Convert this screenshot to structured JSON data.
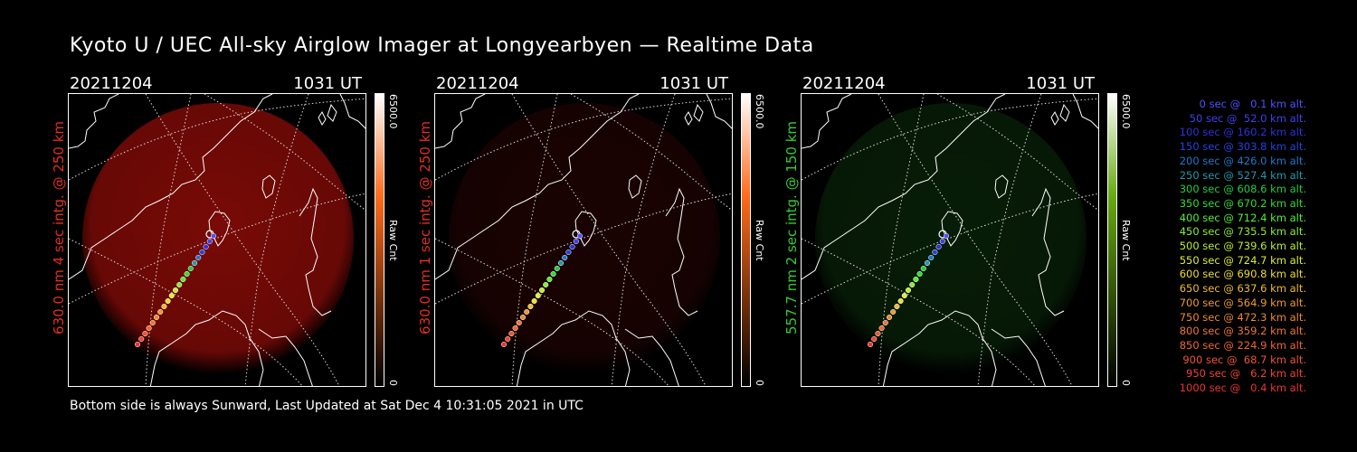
{
  "title": "Kyoto U / UEC All-sky Airglow Imager at Longyearbyen — Realtime Data",
  "footer": "Bottom side is always Sunward, Last Updated at Sat Dec  4 10:31:05 2021 in UTC",
  "panels": [
    {
      "date": "20211204",
      "time": "1031 UT",
      "side_label": "630.0 nm 4 sec intg. @ 250 km",
      "label_color": "#e0301e",
      "cbar_max": "6500.0",
      "cbar_min": "0",
      "cbar_unit": "Raw Cnt",
      "cbar_color": "#ff6a1a",
      "airglow_color": "#8e0c08",
      "airglow_level": 0.85
    },
    {
      "date": "20211204",
      "time": "1031 UT",
      "side_label": "630.0 nm 1 sec intg. @ 250 km",
      "label_color": "#e0301e",
      "cbar_max": "6500.0",
      "cbar_min": "0",
      "cbar_unit": "Raw Cnt",
      "cbar_color": "#ff6a1a",
      "airglow_color": "#3a0606",
      "airglow_level": 0.45
    },
    {
      "date": "20211204",
      "time": "1031 UT",
      "side_label": "557.7 nm 2 sec intg. @ 150 km",
      "label_color": "#33cc33",
      "cbar_max": "6500.0",
      "cbar_min": "0",
      "cbar_unit": "Raw Cnt",
      "cbar_color": "#66aa11",
      "airglow_color": "#0f3a0f",
      "airglow_level": 0.5
    }
  ],
  "legend": [
    {
      "text": "0 sec @   0.1 km alt.",
      "color": "#5050ff"
    },
    {
      "text": "50 sec @  52.0 km alt.",
      "color": "#4040ee"
    },
    {
      "text": "100 sec @ 160.2 km alt.",
      "color": "#3030dd"
    },
    {
      "text": "150 sec @ 303.8 km alt.",
      "color": "#2244dd"
    },
    {
      "text": "200 sec @ 426.0 km alt.",
      "color": "#2277cc"
    },
    {
      "text": "250 sec @ 527.4 km alt.",
      "color": "#2299aa"
    },
    {
      "text": "300 sec @ 608.6 km alt.",
      "color": "#22cc44"
    },
    {
      "text": "350 sec @ 670.2 km alt.",
      "color": "#33dd33"
    },
    {
      "text": "400 sec @ 712.4 km alt.",
      "color": "#55ee33"
    },
    {
      "text": "450 sec @ 735.5 km alt.",
      "color": "#88ee33"
    },
    {
      "text": "500 sec @ 739.6 km alt.",
      "color": "#bbee33"
    },
    {
      "text": "550 sec @ 724.7 km alt.",
      "color": "#ddee33"
    },
    {
      "text": "600 sec @ 690.8 km alt.",
      "color": "#eedd33"
    },
    {
      "text": "650 sec @ 637.6 km alt.",
      "color": "#eebb33"
    },
    {
      "text": "700 sec @ 564.9 km alt.",
      "color": "#ee9933"
    },
    {
      "text": "750 sec @ 472.3 km alt.",
      "color": "#ee8833"
    },
    {
      "text": "800 sec @ 359.2 km alt.",
      "color": "#ee7733"
    },
    {
      "text": "850 sec @ 224.9 km alt.",
      "color": "#ee6633"
    },
    {
      "text": "900 sec @  68.7 km alt.",
      "color": "#ee5533"
    },
    {
      "text": "950 sec @   6.2 km alt.",
      "color": "#ee4433"
    },
    {
      "text": "1000 sec @   0.4 km alt.",
      "color": "#ee3333"
    }
  ]
}
